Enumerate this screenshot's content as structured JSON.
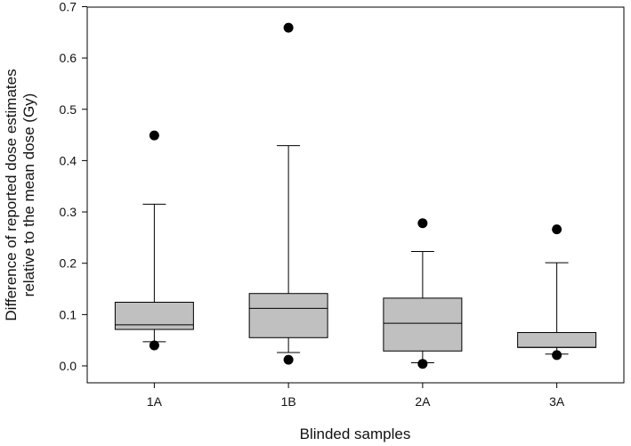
{
  "chart_data": {
    "type": "box",
    "title": "",
    "xlabel": "Blinded samples",
    "ylabel_lines": [
      "Difference of reported dose estimates",
      "relative to the mean dose (Gy)"
    ],
    "ylim": [
      -0.03,
      0.7
    ],
    "yticks": [
      0.0,
      0.1,
      0.2,
      0.3,
      0.4,
      0.5,
      0.6,
      0.7
    ],
    "ytick_labels": [
      "0.0",
      "0.1",
      "0.2",
      "0.3",
      "0.4",
      "0.5",
      "0.6",
      "0.7"
    ],
    "grid": false,
    "box_color": "#c0c0c0",
    "outlier_color": "#000000",
    "categories": [
      "1A",
      "1B",
      "2A",
      "3A"
    ],
    "boxes": [
      {
        "category": "1A",
        "whisker_low": 0.047,
        "q1": 0.071,
        "median": 0.08,
        "q3": 0.124,
        "whisker_high": 0.315,
        "outliers": [
          0.449,
          0.04
        ]
      },
      {
        "category": "1B",
        "whisker_low": 0.026,
        "q1": 0.055,
        "median": 0.112,
        "q3": 0.141,
        "whisker_high": 0.429,
        "outliers": [
          0.659,
          0.012
        ]
      },
      {
        "category": "2A",
        "whisker_low": 0.006,
        "q1": 0.029,
        "median": 0.083,
        "q3": 0.132,
        "whisker_high": 0.223,
        "outliers": [
          0.278,
          0.004
        ]
      },
      {
        "category": "3A",
        "whisker_low": 0.023,
        "q1": 0.036,
        "median": 0.036,
        "q3": 0.065,
        "whisker_high": 0.201,
        "outliers": [
          0.266,
          0.021
        ]
      }
    ]
  }
}
